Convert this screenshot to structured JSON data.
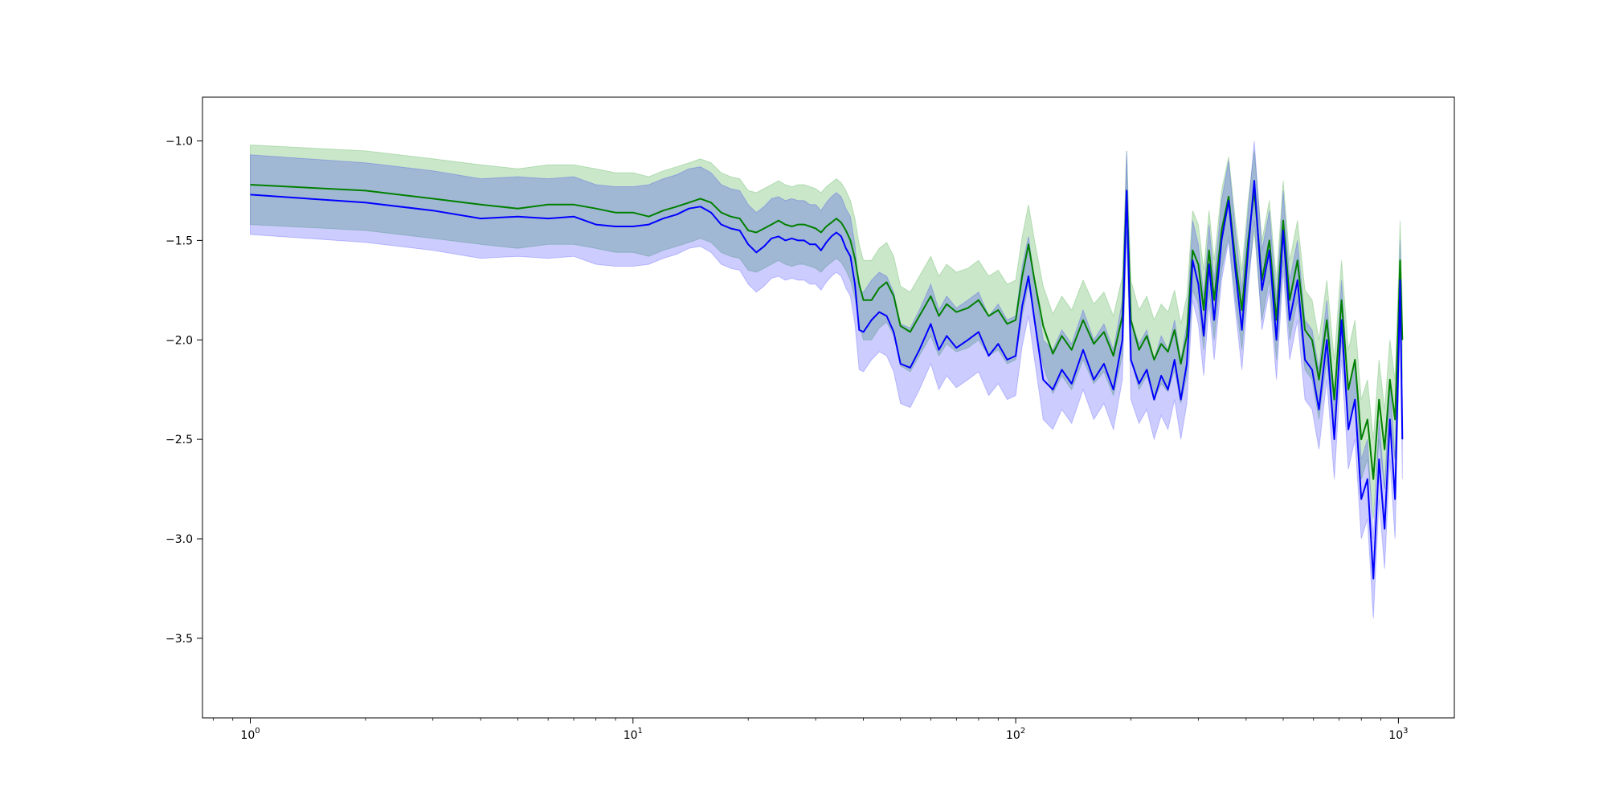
{
  "chart_data": {
    "type": "line",
    "title": "",
    "xlabel": "",
    "ylabel": "",
    "xscale": "log",
    "xlim": [
      0.75,
      1400
    ],
    "ylim": [
      -3.9,
      -0.78
    ],
    "grid": false,
    "legend": "none",
    "x_ticks": [
      {
        "value": 1,
        "base": "10",
        "exp": "0"
      },
      {
        "value": 10,
        "base": "10",
        "exp": "1"
      },
      {
        "value": 100,
        "base": "10",
        "exp": "2"
      },
      {
        "value": 1000,
        "base": "10",
        "exp": "3"
      }
    ],
    "y_ticks": [
      {
        "value": -1.0,
        "label": "−1.0"
      },
      {
        "value": -1.5,
        "label": "−1.5"
      },
      {
        "value": -2.0,
        "label": "−2.0"
      },
      {
        "value": -2.5,
        "label": "−2.5"
      },
      {
        "value": -3.0,
        "label": "−3.0"
      },
      {
        "value": -3.5,
        "label": "−3.5"
      }
    ],
    "series": [
      {
        "color": "#008000",
        "band_color": "#2ca02c",
        "band_opacity": 0.25,
        "band_half_width": 0.2,
        "points": [
          [
            1,
            -1.22
          ],
          [
            2,
            -1.25
          ],
          [
            3,
            -1.29
          ],
          [
            4,
            -1.32
          ],
          [
            5,
            -1.34
          ],
          [
            6,
            -1.32
          ],
          [
            7,
            -1.32
          ],
          [
            8,
            -1.34
          ],
          [
            9,
            -1.36
          ],
          [
            10,
            -1.36
          ],
          [
            11,
            -1.38
          ],
          [
            12,
            -1.35
          ],
          [
            13,
            -1.33
          ],
          [
            14,
            -1.31
          ],
          [
            15,
            -1.29
          ],
          [
            16,
            -1.31
          ],
          [
            17,
            -1.36
          ],
          [
            18,
            -1.38
          ],
          [
            19,
            -1.39
          ],
          [
            20,
            -1.45
          ],
          [
            21,
            -1.46
          ],
          [
            22,
            -1.44
          ],
          [
            23,
            -1.42
          ],
          [
            24,
            -1.4
          ],
          [
            25,
            -1.42
          ],
          [
            26,
            -1.43
          ],
          [
            27,
            -1.42
          ],
          [
            28,
            -1.42
          ],
          [
            29,
            -1.43
          ],
          [
            30,
            -1.44
          ],
          [
            31,
            -1.46
          ],
          [
            32,
            -1.43
          ],
          [
            33,
            -1.41
          ],
          [
            34,
            -1.39
          ],
          [
            35,
            -1.41
          ],
          [
            36,
            -1.45
          ],
          [
            37,
            -1.5
          ],
          [
            38,
            -1.59
          ],
          [
            39,
            -1.72
          ],
          [
            40,
            -1.8
          ],
          [
            42,
            -1.8
          ],
          [
            44,
            -1.74
          ],
          [
            46,
            -1.71
          ],
          [
            48,
            -1.78
          ],
          [
            50,
            -1.93
          ],
          [
            53,
            -1.96
          ],
          [
            56,
            -1.88
          ],
          [
            60,
            -1.78
          ],
          [
            63,
            -1.88
          ],
          [
            66,
            -1.82
          ],
          [
            70,
            -1.86
          ],
          [
            75,
            -1.84
          ],
          [
            80,
            -1.8
          ],
          [
            85,
            -1.88
          ],
          [
            90,
            -1.85
          ],
          [
            95,
            -1.92
          ],
          [
            100,
            -1.9
          ],
          [
            104,
            -1.68
          ],
          [
            108,
            -1.52
          ],
          [
            112,
            -1.7
          ],
          [
            118,
            -1.93
          ],
          [
            125,
            -2.07
          ],
          [
            132,
            -1.98
          ],
          [
            140,
            -2.05
          ],
          [
            150,
            -1.9
          ],
          [
            160,
            -2.02
          ],
          [
            170,
            -1.96
          ],
          [
            180,
            -2.08
          ],
          [
            190,
            -1.88
          ],
          [
            195,
            -1.25
          ],
          [
            200,
            -1.9
          ],
          [
            210,
            -2.05
          ],
          [
            220,
            -1.98
          ],
          [
            230,
            -2.1
          ],
          [
            240,
            -2.02
          ],
          [
            250,
            -2.06
          ],
          [
            260,
            -1.95
          ],
          [
            270,
            -2.12
          ],
          [
            280,
            -1.98
          ],
          [
            290,
            -1.55
          ],
          [
            300,
            -1.62
          ],
          [
            310,
            -1.85
          ],
          [
            320,
            -1.55
          ],
          [
            330,
            -1.8
          ],
          [
            345,
            -1.45
          ],
          [
            360,
            -1.28
          ],
          [
            375,
            -1.6
          ],
          [
            390,
            -1.85
          ],
          [
            405,
            -1.5
          ],
          [
            420,
            -1.25
          ],
          [
            440,
            -1.7
          ],
          [
            460,
            -1.5
          ],
          [
            480,
            -1.9
          ],
          [
            500,
            -1.4
          ],
          [
            520,
            -1.8
          ],
          [
            545,
            -1.6
          ],
          [
            570,
            -1.95
          ],
          [
            595,
            -2.0
          ],
          [
            620,
            -2.2
          ],
          [
            650,
            -1.9
          ],
          [
            680,
            -2.3
          ],
          [
            710,
            -1.8
          ],
          [
            740,
            -2.25
          ],
          [
            770,
            -2.1
          ],
          [
            800,
            -2.5
          ],
          [
            830,
            -2.4
          ],
          [
            860,
            -2.7
          ],
          [
            890,
            -2.3
          ],
          [
            920,
            -2.55
          ],
          [
            950,
            -2.2
          ],
          [
            980,
            -2.4
          ],
          [
            1000,
            -1.9
          ],
          [
            1010,
            -1.6
          ],
          [
            1024,
            -2.0
          ]
        ]
      },
      {
        "color": "#0000ff",
        "band_color": "#0000ff",
        "band_opacity": 0.2,
        "band_half_width": 0.2,
        "points": [
          [
            1,
            -1.27
          ],
          [
            2,
            -1.31
          ],
          [
            3,
            -1.35
          ],
          [
            4,
            -1.39
          ],
          [
            5,
            -1.38
          ],
          [
            6,
            -1.39
          ],
          [
            7,
            -1.38
          ],
          [
            8,
            -1.42
          ],
          [
            9,
            -1.43
          ],
          [
            10,
            -1.43
          ],
          [
            11,
            -1.42
          ],
          [
            12,
            -1.39
          ],
          [
            13,
            -1.37
          ],
          [
            14,
            -1.34
          ],
          [
            15,
            -1.33
          ],
          [
            16,
            -1.36
          ],
          [
            17,
            -1.42
          ],
          [
            18,
            -1.44
          ],
          [
            19,
            -1.45
          ],
          [
            20,
            -1.52
          ],
          [
            21,
            -1.56
          ],
          [
            22,
            -1.53
          ],
          [
            23,
            -1.49
          ],
          [
            24,
            -1.48
          ],
          [
            25,
            -1.5
          ],
          [
            26,
            -1.49
          ],
          [
            27,
            -1.5
          ],
          [
            28,
            -1.5
          ],
          [
            29,
            -1.52
          ],
          [
            30,
            -1.52
          ],
          [
            31,
            -1.55
          ],
          [
            32,
            -1.51
          ],
          [
            33,
            -1.48
          ],
          [
            34,
            -1.46
          ],
          [
            35,
            -1.48
          ],
          [
            36,
            -1.54
          ],
          [
            37,
            -1.58
          ],
          [
            38,
            -1.72
          ],
          [
            39,
            -1.95
          ],
          [
            40,
            -1.96
          ],
          [
            42,
            -1.9
          ],
          [
            44,
            -1.86
          ],
          [
            46,
            -1.88
          ],
          [
            48,
            -1.96
          ],
          [
            50,
            -2.12
          ],
          [
            53,
            -2.14
          ],
          [
            56,
            -2.05
          ],
          [
            60,
            -1.92
          ],
          [
            63,
            -2.05
          ],
          [
            66,
            -1.98
          ],
          [
            70,
            -2.04
          ],
          [
            75,
            -2.0
          ],
          [
            80,
            -1.96
          ],
          [
            85,
            -2.08
          ],
          [
            90,
            -2.02
          ],
          [
            95,
            -2.1
          ],
          [
            100,
            -2.08
          ],
          [
            104,
            -1.83
          ],
          [
            108,
            -1.68
          ],
          [
            112,
            -1.9
          ],
          [
            118,
            -2.2
          ],
          [
            125,
            -2.25
          ],
          [
            132,
            -2.15
          ],
          [
            140,
            -2.22
          ],
          [
            150,
            -2.05
          ],
          [
            160,
            -2.2
          ],
          [
            170,
            -2.12
          ],
          [
            180,
            -2.25
          ],
          [
            190,
            -2.0
          ],
          [
            195,
            -1.25
          ],
          [
            200,
            -2.1
          ],
          [
            210,
            -2.22
          ],
          [
            220,
            -2.15
          ],
          [
            230,
            -2.3
          ],
          [
            240,
            -2.18
          ],
          [
            250,
            -2.25
          ],
          [
            260,
            -2.1
          ],
          [
            270,
            -2.3
          ],
          [
            280,
            -2.12
          ],
          [
            290,
            -1.6
          ],
          [
            300,
            -1.72
          ],
          [
            310,
            -1.98
          ],
          [
            320,
            -1.62
          ],
          [
            330,
            -1.9
          ],
          [
            345,
            -1.5
          ],
          [
            360,
            -1.3
          ],
          [
            375,
            -1.65
          ],
          [
            390,
            -1.95
          ],
          [
            405,
            -1.55
          ],
          [
            420,
            -1.2
          ],
          [
            440,
            -1.75
          ],
          [
            460,
            -1.55
          ],
          [
            480,
            -2.0
          ],
          [
            500,
            -1.45
          ],
          [
            520,
            -1.9
          ],
          [
            545,
            -1.7
          ],
          [
            570,
            -2.1
          ],
          [
            595,
            -2.15
          ],
          [
            620,
            -2.35
          ],
          [
            650,
            -2.0
          ],
          [
            680,
            -2.5
          ],
          [
            710,
            -1.9
          ],
          [
            740,
            -2.45
          ],
          [
            770,
            -2.3
          ],
          [
            800,
            -2.8
          ],
          [
            830,
            -2.7
          ],
          [
            860,
            -3.2
          ],
          [
            890,
            -2.6
          ],
          [
            920,
            -2.95
          ],
          [
            950,
            -2.4
          ],
          [
            980,
            -2.8
          ],
          [
            1000,
            -2.1
          ],
          [
            1010,
            -1.7
          ],
          [
            1024,
            -2.5
          ]
        ]
      }
    ]
  }
}
